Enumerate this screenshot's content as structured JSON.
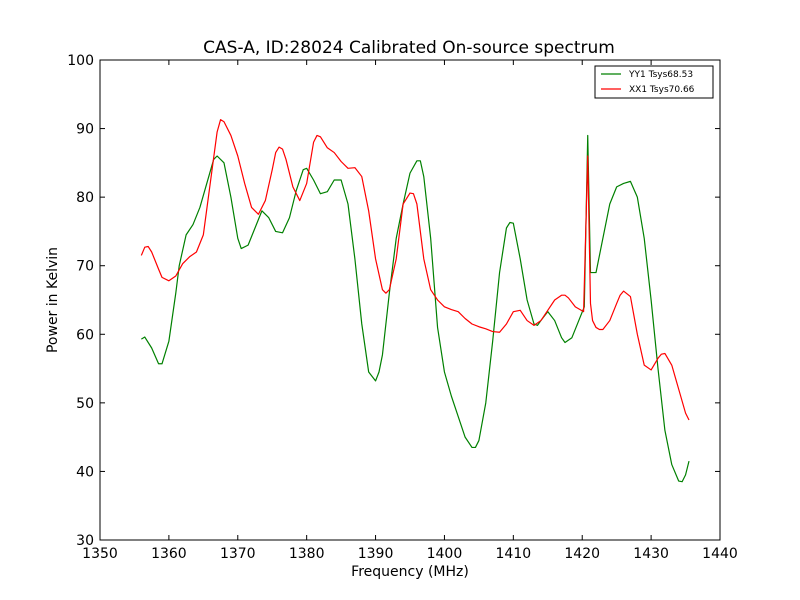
{
  "chart_data": {
    "type": "line",
    "title": "CAS-A, ID:28024 Calibrated On-source spectrum",
    "xlabel": "Frequency (MHz)",
    "ylabel": "Power in Kelvin",
    "xlim": [
      1350,
      1440
    ],
    "ylim": [
      30,
      100
    ],
    "xticks": [
      "1350",
      "1360",
      "1370",
      "1380",
      "1390",
      "1400",
      "1410",
      "1420",
      "1430",
      "1440"
    ],
    "yticks": [
      "30",
      "40",
      "50",
      "60",
      "70",
      "80",
      "90",
      "100"
    ],
    "grid": false,
    "legend_position": "top-right",
    "series": [
      {
        "name": "YY1 Tsys68.53",
        "color": "#008000",
        "x": [
          1356,
          1356.5,
          1357.5,
          1358.5,
          1359,
          1360,
          1361,
          1361.5,
          1362.5,
          1363.5,
          1364.5,
          1365.5,
          1366.5,
          1367,
          1368,
          1369,
          1370,
          1370.5,
          1371.5,
          1372.5,
          1373.5,
          1374.5,
          1375.5,
          1376.5,
          1377.5,
          1378.5,
          1379.5,
          1380,
          1381,
          1382,
          1383,
          1384,
          1385,
          1386,
          1387,
          1388,
          1389,
          1390,
          1390.5,
          1391,
          1392,
          1393,
          1394,
          1395,
          1396,
          1396.5,
          1397,
          1398,
          1399,
          1400,
          1401,
          1402,
          1403,
          1404,
          1404.5,
          1405,
          1406,
          1407,
          1408,
          1409,
          1409.5,
          1410,
          1411,
          1412,
          1413,
          1413.5,
          1414,
          1415,
          1416,
          1417,
          1417.5,
          1418.5,
          1419.5,
          1420.3,
          1420.8,
          1421.2,
          1421.5,
          1422,
          1423,
          1424,
          1425,
          1426,
          1427,
          1428,
          1429,
          1430,
          1431,
          1432,
          1433,
          1434,
          1434.5,
          1435,
          1435.5
        ],
        "values": [
          59.3,
          59.6,
          58,
          55.7,
          55.7,
          59,
          66,
          70,
          74.5,
          76,
          78.5,
          82,
          85.5,
          86,
          85,
          80,
          74,
          72.5,
          73,
          75.5,
          78,
          77,
          75,
          74.8,
          77,
          81,
          84,
          84.2,
          82.5,
          80.5,
          80.8,
          82.5,
          82.5,
          79,
          71,
          61.5,
          54.5,
          53.2,
          54.5,
          57,
          66,
          74,
          79,
          83.5,
          85.3,
          85.3,
          83,
          74,
          61,
          54.5,
          51,
          48,
          45,
          43.5,
          43.5,
          44.5,
          50,
          59,
          69,
          75.5,
          76.3,
          76.2,
          71,
          65,
          61.5,
          61.3,
          62,
          63.3,
          62,
          59.5,
          58.8,
          59.5,
          62,
          64,
          89,
          69,
          69,
          69,
          74,
          79,
          81.5,
          82,
          82.3,
          80,
          74,
          65,
          55,
          46,
          41,
          38.6,
          38.5,
          39.5,
          41.5
        ]
      },
      {
        "name": "XX1 Tsys70.66",
        "color": "#ff0000",
        "x": [
          1356,
          1356.5,
          1357,
          1357.5,
          1358.5,
          1359,
          1360,
          1361,
          1362,
          1363,
          1364,
          1365,
          1366,
          1367,
          1367.5,
          1368,
          1369,
          1370,
          1371,
          1372,
          1373,
          1374,
          1375,
          1375.5,
          1376,
          1376.5,
          1377,
          1378,
          1379,
          1380,
          1381,
          1381.5,
          1382,
          1383,
          1384,
          1385,
          1386,
          1387,
          1388,
          1389,
          1390,
          1391,
          1391.5,
          1392,
          1393,
          1394,
          1395,
          1395.5,
          1396,
          1397,
          1398,
          1399,
          1400,
          1401,
          1402,
          1403,
          1404,
          1405,
          1406,
          1407,
          1408,
          1409,
          1410,
          1411,
          1412,
          1413,
          1414,
          1415,
          1416,
          1417,
          1417.5,
          1418,
          1419,
          1420.2,
          1420.8,
          1421.2,
          1421.5,
          1422,
          1422.5,
          1423,
          1424,
          1425,
          1425.5,
          1426,
          1427,
          1428,
          1429,
          1430,
          1431,
          1431.5,
          1432,
          1433,
          1434,
          1435,
          1435.5
        ],
        "values": [
          71.5,
          72.7,
          72.8,
          72,
          69.5,
          68.3,
          67.8,
          68.5,
          70.3,
          71.3,
          72,
          74.5,
          82,
          89.5,
          91.3,
          91,
          89,
          86,
          82,
          78.5,
          77.5,
          79.5,
          84,
          86.5,
          87.3,
          87,
          85.5,
          81.5,
          79.5,
          82,
          88,
          89,
          88.8,
          87.2,
          86.5,
          85.2,
          84.2,
          84.3,
          83,
          78,
          71,
          66.5,
          66,
          66.5,
          71,
          79,
          80.6,
          80.5,
          79,
          71,
          66.5,
          65,
          64,
          63.6,
          63.3,
          62.3,
          61.5,
          61.1,
          60.8,
          60.4,
          60.3,
          61.5,
          63.3,
          63.5,
          62,
          61.3,
          62,
          63.5,
          65,
          65.7,
          65.7,
          65.3,
          64,
          63.3,
          86,
          64.5,
          62,
          61,
          60.7,
          60.7,
          62,
          64.5,
          65.7,
          66.3,
          65.5,
          60,
          55.5,
          54.8,
          56.5,
          57.1,
          57.2,
          55.5,
          52,
          48.5,
          47.5
        ]
      }
    ]
  }
}
